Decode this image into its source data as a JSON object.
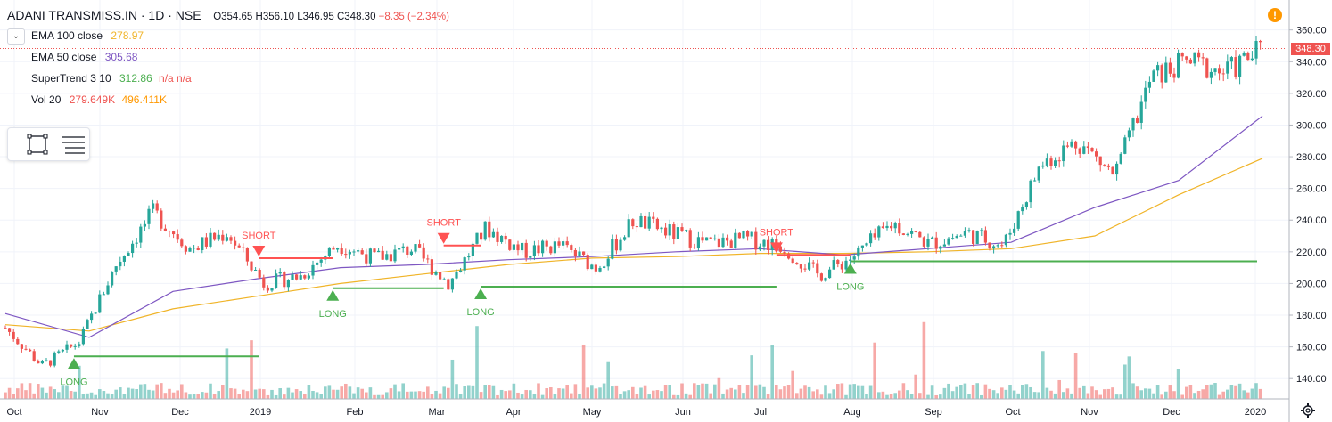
{
  "header": {
    "symbol": "ADANI TRANSMISS.IN · 1D · NSE",
    "open": "O354.65",
    "high": "H356.10",
    "low": "L346.95",
    "close": "C348.30",
    "change": "−8.35 (−2.34%)"
  },
  "indicators": [
    {
      "name": "EMA 100 close",
      "value": "278.97",
      "color": "#f0b429"
    },
    {
      "name": "EMA 50 close",
      "value": "305.68",
      "color": "#7e57c2"
    },
    {
      "name": "SuperTrend 3 10",
      "value": "312.86",
      "extra": "n/a n/a",
      "color": "#4caf50"
    },
    {
      "name": "Vol 20",
      "value": "279.649K",
      "extra": "496.411K",
      "color": "#ef5350"
    }
  ],
  "price_tag": "348.30",
  "colors": {
    "up": "#26a69a",
    "down": "#ef5350",
    "ema100": "#f0b429",
    "ema50": "#7e57c2",
    "st_up": "#4caf50",
    "st_down": "#ff5252"
  },
  "icons": [
    "chevron-down-icon",
    "square-tool-icon",
    "list-icon",
    "alert-icon",
    "gear-icon"
  ],
  "chart_data": {
    "type": "candlestick",
    "y_axis": {
      "ticks": [
        140,
        160,
        180,
        200,
        220,
        240,
        260,
        280,
        300,
        320,
        340,
        360
      ],
      "range": [
        130,
        366
      ],
      "position": "right"
    },
    "x_axis": {
      "ticks": [
        "Oct",
        "Nov",
        "Dec",
        "2019",
        "Feb",
        "Mar",
        "Apr",
        "May",
        "Jun",
        "Jul",
        "Aug",
        "Sep",
        "Oct",
        "Nov",
        "Dec",
        "2020"
      ]
    },
    "last_price": 348.3,
    "grid": true,
    "price_series": [
      {
        "x": "Oct",
        "y": 172
      },
      {
        "x": "mid-Oct",
        "y": 148
      },
      {
        "x": "Nov",
        "y": 163
      },
      {
        "x": "mid-Nov",
        "y": 212
      },
      {
        "x": "late-Nov",
        "y": 245
      },
      {
        "x": "Dec",
        "y": 222
      },
      {
        "x": "mid-Dec",
        "y": 232
      },
      {
        "x": "late-Dec",
        "y": 200
      },
      {
        "x": "2019",
        "y": 205
      },
      {
        "x": "mid-Jan",
        "y": 225
      },
      {
        "x": "Feb",
        "y": 216
      },
      {
        "x": "mid-Feb",
        "y": 222
      },
      {
        "x": "Mar",
        "y": 200
      },
      {
        "x": "mid-Mar",
        "y": 235
      },
      {
        "x": "Apr",
        "y": 220
      },
      {
        "x": "mid-Apr",
        "y": 224
      },
      {
        "x": "May",
        "y": 210
      },
      {
        "x": "late-May",
        "y": 240
      },
      {
        "x": "Jun",
        "y": 232
      },
      {
        "x": "mid-Jun",
        "y": 225
      },
      {
        "x": "Jul",
        "y": 228
      },
      {
        "x": "mid-Jul",
        "y": 224
      },
      {
        "x": "Aug",
        "y": 205
      },
      {
        "x": "mid-Aug",
        "y": 218
      },
      {
        "x": "Sep",
        "y": 238
      },
      {
        "x": "mid-Sep",
        "y": 225
      },
      {
        "x": "Oct",
        "y": 232
      },
      {
        "x": "mid-Oct",
        "y": 224
      },
      {
        "x": "late-Oct",
        "y": 275
      },
      {
        "x": "Nov",
        "y": 290
      },
      {
        "x": "mid-Nov",
        "y": 268
      },
      {
        "x": "Dec",
        "y": 330
      },
      {
        "x": "mid-Dec",
        "y": 340
      },
      {
        "x": "late-Dec",
        "y": 333
      },
      {
        "x": "2020",
        "y": 348.3
      }
    ],
    "ema100": [
      {
        "x": "Oct",
        "y": 174
      },
      {
        "x": "Nov",
        "y": 170
      },
      {
        "x": "Dec",
        "y": 184
      },
      {
        "x": "2019",
        "y": 192
      },
      {
        "x": "Feb",
        "y": 200
      },
      {
        "x": "Mar",
        "y": 206
      },
      {
        "x": "Apr",
        "y": 212
      },
      {
        "x": "May",
        "y": 216
      },
      {
        "x": "Jun",
        "y": 217
      },
      {
        "x": "Jul",
        "y": 219
      },
      {
        "x": "Aug",
        "y": 219
      },
      {
        "x": "Sep",
        "y": 220
      },
      {
        "x": "Oct",
        "y": 222
      },
      {
        "x": "Nov",
        "y": 230
      },
      {
        "x": "Dec",
        "y": 256
      },
      {
        "x": "2020",
        "y": 278.97
      }
    ],
    "ema50": [
      {
        "x": "Oct",
        "y": 181
      },
      {
        "x": "Nov",
        "y": 166
      },
      {
        "x": "Dec",
        "y": 195
      },
      {
        "x": "2019",
        "y": 203
      },
      {
        "x": "Feb",
        "y": 210
      },
      {
        "x": "Mar",
        "y": 212
      },
      {
        "x": "Apr",
        "y": 215
      },
      {
        "x": "May",
        "y": 217
      },
      {
        "x": "Jun",
        "y": 220
      },
      {
        "x": "Jul",
        "y": 222
      },
      {
        "x": "Aug",
        "y": 218
      },
      {
        "x": "Sep",
        "y": 222
      },
      {
        "x": "Oct",
        "y": 226
      },
      {
        "x": "Nov",
        "y": 248
      },
      {
        "x": "Dec",
        "y": 265
      },
      {
        "x": "2020",
        "y": 305.68
      }
    ],
    "signals": [
      {
        "label": "LONG",
        "x": "Nov",
        "price": 154
      },
      {
        "label": "SHORT",
        "x": "late-Dec",
        "price": 216
      },
      {
        "label": "LONG",
        "x": "mid-Jan",
        "price": 197
      },
      {
        "label": "SHORT",
        "x": "late-Feb",
        "price": 224
      },
      {
        "label": "LONG",
        "x": "mid-Mar",
        "price": 198
      },
      {
        "label": "SHORT",
        "x": "late-Jul",
        "price": 218
      },
      {
        "label": "LONG",
        "x": "late-Aug",
        "price": 214
      }
    ]
  }
}
